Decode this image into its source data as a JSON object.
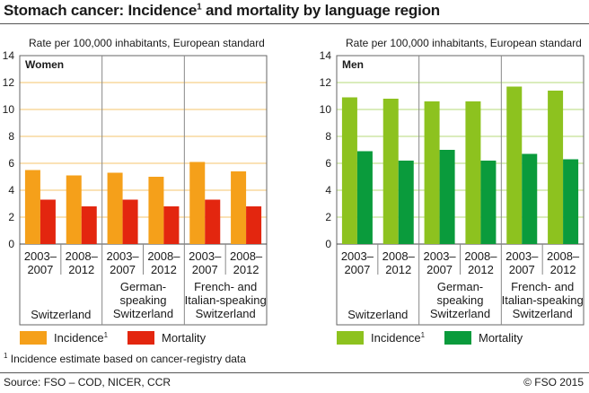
{
  "title_main": "Stomach cancer: Incidence",
  "title_sup": "1",
  "title_rest": " and mortality by language region",
  "footnote_sup": "1",
  "footnote_text": " Incidence estimate based on cancer-registry data",
  "source": "Source: FSO – COD, NICER, CCR",
  "copyright": "© FSO 2015",
  "chart_data": [
    {
      "type": "bar",
      "panel_label": "Women",
      "ylabel": "Rate per 100,000 inhabitants, European standard",
      "ylim": [
        0,
        14
      ],
      "yticks": [
        0,
        2,
        4,
        6,
        8,
        10,
        12,
        14
      ],
      "categories": [
        "2003–2007",
        "2008–2012",
        "2003–2007",
        "2008–2012",
        "2003–2007",
        "2008–2012"
      ],
      "category_lines": [
        [
          "2003–",
          "2007"
        ],
        [
          "2008–",
          "2012"
        ],
        [
          "2003–",
          "2007"
        ],
        [
          "2008–",
          "2012"
        ],
        [
          "2003–",
          "2007"
        ],
        [
          "2008–",
          "2012"
        ]
      ],
      "groups": [
        {
          "label_lines": [
            "Switzerland"
          ]
        },
        {
          "label_lines": [
            "German-",
            "speaking",
            "Switzerland"
          ]
        },
        {
          "label_lines": [
            "French- and",
            "Italian-speaking",
            "Switzerland"
          ]
        }
      ],
      "series": [
        {
          "name": "Incidence",
          "name_sup": "1",
          "color": "#f5a01a",
          "values": [
            5.5,
            5.1,
            5.3,
            5.0,
            6.1,
            5.4
          ]
        },
        {
          "name": "Mortality",
          "color": "#e3260f",
          "values": [
            3.3,
            2.8,
            3.3,
            2.8,
            3.3,
            2.8
          ]
        }
      ]
    },
    {
      "type": "bar",
      "panel_label": "Men",
      "ylabel": "Rate per 100,000 inhabitants, European standard",
      "ylim": [
        0,
        14
      ],
      "yticks": [
        0,
        2,
        4,
        6,
        8,
        10,
        12,
        14
      ],
      "categories": [
        "2003–2007",
        "2008–2012",
        "2003–2007",
        "2008–2012",
        "2003–2007",
        "2008–2012"
      ],
      "category_lines": [
        [
          "2003–",
          "2007"
        ],
        [
          "2008–",
          "2012"
        ],
        [
          "2003–",
          "2007"
        ],
        [
          "2008–",
          "2012"
        ],
        [
          "2003–",
          "2007"
        ],
        [
          "2008–",
          "2012"
        ]
      ],
      "groups": [
        {
          "label_lines": [
            "Switzerland"
          ]
        },
        {
          "label_lines": [
            "German-",
            "speaking",
            "Switzerland"
          ]
        },
        {
          "label_lines": [
            "French- and",
            "Italian-speaking",
            "Switzerland"
          ]
        }
      ],
      "series": [
        {
          "name": "Incidence",
          "name_sup": "1",
          "color": "#8dc21f",
          "values": [
            10.9,
            10.8,
            10.6,
            10.6,
            11.7,
            11.4
          ]
        },
        {
          "name": "Mortality",
          "color": "#0a9b3c",
          "values": [
            6.9,
            6.2,
            7.0,
            6.2,
            6.7,
            6.3
          ]
        }
      ]
    }
  ]
}
